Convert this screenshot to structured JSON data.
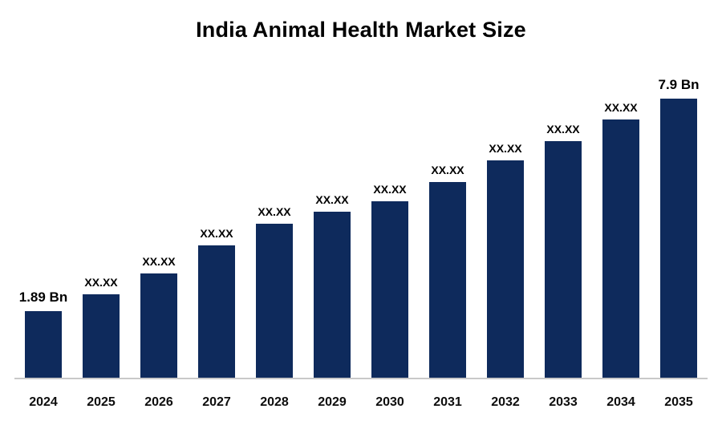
{
  "chart_data": {
    "type": "bar",
    "title": "India Animal Health Market Size",
    "categories": [
      "2024",
      "2025",
      "2026",
      "2027",
      "2028",
      "2029",
      "2030",
      "2031",
      "2032",
      "2033",
      "2034",
      "2035"
    ],
    "values": [
      1.89,
      2.35,
      2.95,
      3.75,
      4.35,
      4.7,
      5.0,
      5.55,
      6.15,
      6.7,
      7.3,
      7.9
    ],
    "bar_labels": [
      "1.89 Bn",
      "XX.XX",
      "XX.XX",
      "XX.XX",
      "XX.XX",
      "XX.XX",
      "XX.XX",
      "XX.XX",
      "XX.XX",
      "XX.XX",
      "XX.XX",
      "7.9 Bn"
    ],
    "xlabel": "",
    "ylabel": "",
    "ylim": [
      0,
      8.5
    ],
    "grid": false,
    "legend_position": "none",
    "bar_color": "#0e2a5c",
    "axis_line_color": "#c9c9c9",
    "first_value_text": "1.89 Bn",
    "last_value_text": "7.9 Bn",
    "masked_value_text": "XX.XX"
  }
}
